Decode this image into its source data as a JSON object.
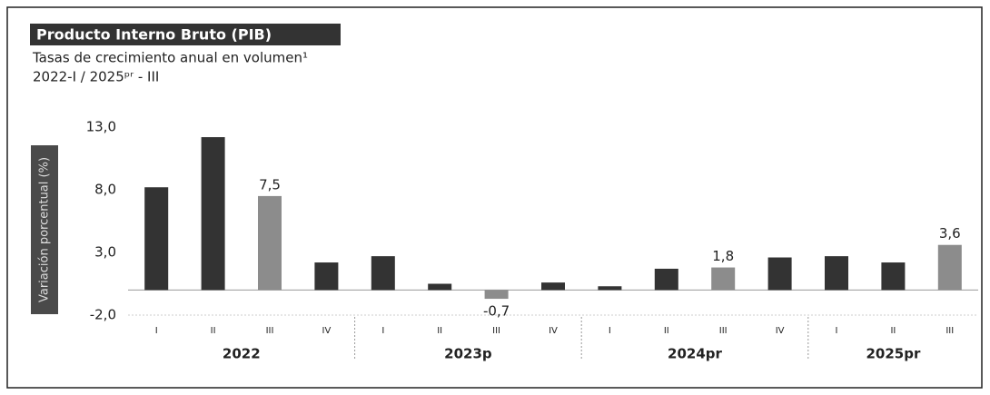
{
  "chart_data": {
    "type": "bar",
    "title": "Producto Interno Bruto (PIB)",
    "subtitle": "Tasas de crecimiento anual en volumen¹",
    "period": "2022-I / 2025ᵖʳ - III",
    "y_label": "Variación porcentual (%)",
    "groups": [
      {
        "name": "2022",
        "categories": [
          "I",
          "II",
          "III",
          "IV"
        ]
      },
      {
        "name": "2023p",
        "categories": [
          "I",
          "II",
          "III",
          "IV"
        ]
      },
      {
        "name": "2024pr",
        "categories": [
          "I",
          "II",
          "III",
          "IV"
        ]
      },
      {
        "name": "2025pr",
        "categories": [
          "I",
          "II",
          "III"
        ]
      }
    ],
    "values": [
      8.2,
      12.2,
      7.5,
      2.2,
      2.7,
      0.5,
      -0.7,
      0.6,
      0.3,
      1.7,
      1.8,
      2.6,
      2.7,
      2.2,
      3.6
    ],
    "value_labels": [
      null,
      null,
      "7,5",
      null,
      null,
      null,
      "-0,7",
      null,
      null,
      null,
      "1,8",
      null,
      null,
      null,
      "3,6"
    ],
    "colors": [
      "#333333",
      "#333333",
      "#8c8c8c",
      "#333333",
      "#333333",
      "#333333",
      "#8c8c8c",
      "#333333",
      "#333333",
      "#333333",
      "#8c8c8c",
      "#333333",
      "#333333",
      "#333333",
      "#8c8c8c"
    ],
    "ylim": [
      -2.0,
      13.0
    ],
    "yticks": [
      {
        "value": 13.0,
        "label": "13,0"
      },
      {
        "value": 8.0,
        "label": "8,0"
      },
      {
        "value": 3.0,
        "label": "3,0"
      },
      {
        "value": -2.0,
        "label": "-2,0"
      }
    ]
  }
}
